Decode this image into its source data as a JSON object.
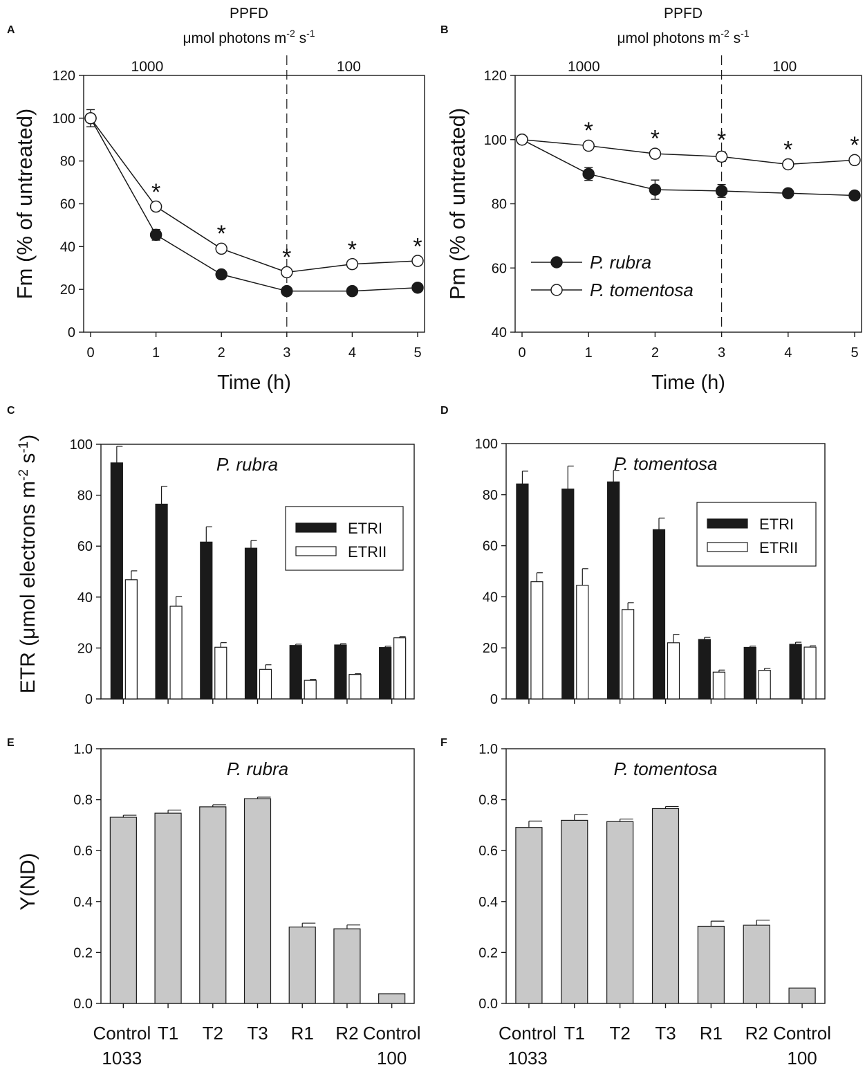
{
  "colors": {
    "line": "#1a1a1a",
    "bar_dark": "#1a1a1a",
    "bar_white": "#ffffff",
    "bar_gray": "#c8c8c8"
  },
  "shared_text": {
    "ppfd_title": "PPFD",
    "ppfd_units": "μmol photons m⁻² s⁻¹",
    "ppfd_high": "1000",
    "ppfd_low": "100",
    "etr_ylabel": "ETR (μmol electrons m⁻² s⁻¹)"
  },
  "chart_data": [
    {
      "panel": "A",
      "type": "line",
      "ylabel": "Fm (% of untreated)",
      "xlabel": "Time (h)",
      "x": [
        0,
        1,
        2,
        3,
        4,
        5
      ],
      "xlim": [
        -0.1,
        5.1
      ],
      "ylim": [
        0,
        120
      ],
      "xticks": [
        "0",
        "1",
        "2",
        "3",
        "4",
        "5"
      ],
      "yticks": [
        "0",
        "20",
        "40",
        "60",
        "80",
        "100",
        "120"
      ],
      "divider_at": 3,
      "series": [
        {
          "name": "P. rubra",
          "marker": "filled",
          "values": [
            100,
            45.5,
            27,
            19.2,
            19.2,
            20.8
          ],
          "errors": [
            0,
            2.5,
            1.2,
            1.2,
            1.2,
            1.2
          ]
        },
        {
          "name": "P. tomentosa",
          "marker": "open",
          "values": [
            100,
            58.7,
            39,
            28,
            31.8,
            33.3
          ],
          "errors": [
            4,
            1.2,
            1.5,
            1.5,
            1.2,
            1.2
          ]
        }
      ],
      "significance_at": [
        1,
        2,
        3,
        4,
        5
      ],
      "significance_mark": "*"
    },
    {
      "panel": "B",
      "type": "line",
      "ylabel": "Pm (% of untreated)",
      "xlabel": "Time (h)",
      "x": [
        0,
        1,
        2,
        3,
        4,
        5
      ],
      "xlim": [
        -0.1,
        5.1
      ],
      "ylim": [
        40,
        120
      ],
      "xticks": [
        "0",
        "1",
        "2",
        "3",
        "4",
        "5"
      ],
      "yticks": [
        "40",
        "60",
        "80",
        "100",
        "120"
      ],
      "divider_at": 3,
      "series": [
        {
          "name": "P. rubra",
          "marker": "filled",
          "values": [
            100,
            89.3,
            84.4,
            84,
            83.3,
            82.6
          ],
          "errors": [
            0,
            2,
            3,
            2,
            0.5,
            0.5
          ]
        },
        {
          "name": "P. tomentosa",
          "marker": "open",
          "values": [
            100,
            98.1,
            95.6,
            94.7,
            92.3,
            93.6
          ],
          "errors": [
            0,
            1,
            1,
            1.5,
            0.8,
            1
          ]
        }
      ],
      "significance_at": [
        1,
        2,
        3,
        4,
        5
      ],
      "significance_mark": "*",
      "legend": {
        "position": "lower-left",
        "entries": [
          "P. rubra",
          "P. tomentosa"
        ]
      }
    },
    {
      "panel": "C",
      "type": "bar",
      "title": "P. rubra",
      "ylim": [
        0,
        100
      ],
      "yticks": [
        "0",
        "20",
        "40",
        "60",
        "80",
        "100"
      ],
      "categories": [
        "Control 1033",
        "T1",
        "T2",
        "T3",
        "R1",
        "R2",
        "Control 100"
      ],
      "series": [
        {
          "name": "ETRI",
          "fill": "dark",
          "values": [
            92.7,
            76.5,
            61.6,
            59.2,
            21,
            21.2,
            20.2
          ],
          "errors": [
            6.5,
            7,
            6,
            3,
            0.5,
            0.5,
            0.5
          ]
        },
        {
          "name": "ETRII",
          "fill": "white",
          "values": [
            46.8,
            36.4,
            20.3,
            11.6,
            7.3,
            9.6,
            24
          ],
          "errors": [
            3.5,
            3.8,
            1.8,
            1.8,
            0.4,
            0.3,
            0.5
          ]
        }
      ],
      "legend": {
        "position": "right",
        "entries": [
          "ETRI",
          "ETRII"
        ]
      }
    },
    {
      "panel": "D",
      "type": "bar",
      "title": "P. tomentosa",
      "ylim": [
        0,
        100
      ],
      "yticks": [
        "0",
        "20",
        "40",
        "60",
        "80",
        "100"
      ],
      "categories": [
        "Control 1033",
        "T1",
        "T2",
        "T3",
        "R1",
        "R2",
        "Control 100"
      ],
      "series": [
        {
          "name": "ETRI",
          "fill": "dark",
          "values": [
            84.2,
            82.2,
            85,
            66.3,
            23.3,
            20.2,
            21.4
          ],
          "errors": [
            5,
            9,
            4.5,
            4.5,
            0.8,
            0.5,
            0.8
          ]
        },
        {
          "name": "ETRII",
          "fill": "white",
          "values": [
            45.9,
            44.5,
            35,
            22,
            10.5,
            11.2,
            20.3
          ],
          "errors": [
            3.5,
            6.5,
            2.7,
            3.3,
            0.8,
            0.8,
            0.5
          ]
        }
      ],
      "legend": {
        "position": "right",
        "entries": [
          "ETRI",
          "ETRII"
        ]
      }
    },
    {
      "panel": "E",
      "type": "bar",
      "title": "P. rubra",
      "ylabel": "Y(ND)",
      "ylim": [
        0,
        1
      ],
      "yticks": [
        "0.0",
        "0.2",
        "0.4",
        "0.6",
        "0.8",
        "1.0"
      ],
      "categories": [
        "Control 1033",
        "T1",
        "T2",
        "T3",
        "R1",
        "R2",
        "Control 100"
      ],
      "category_labels": [
        [
          "Control",
          "1033"
        ],
        [
          "T1"
        ],
        [
          "T2"
        ],
        [
          "T3"
        ],
        [
          "R1"
        ],
        [
          "R2"
        ],
        [
          "Control",
          "100"
        ]
      ],
      "series": [
        {
          "name": "Y(ND)",
          "fill": "gray",
          "values": [
            0.731,
            0.747,
            0.772,
            0.804,
            0.3,
            0.293,
            0.038
          ],
          "errors": [
            0.008,
            0.012,
            0.008,
            0.006,
            0.015,
            0.015,
            0
          ]
        }
      ]
    },
    {
      "panel": "F",
      "type": "bar",
      "title": "P. tomentosa",
      "ylim": [
        0,
        1
      ],
      "yticks": [
        "0.0",
        "0.2",
        "0.4",
        "0.6",
        "0.8",
        "1.0"
      ],
      "categories": [
        "Control 1033",
        "T1",
        "T2",
        "T3",
        "R1",
        "R2",
        "Control 100"
      ],
      "category_labels": [
        [
          "Control",
          "1033"
        ],
        [
          "T1"
        ],
        [
          "T2"
        ],
        [
          "T3"
        ],
        [
          "R1"
        ],
        [
          "R2"
        ],
        [
          "Control",
          "100"
        ]
      ],
      "series": [
        {
          "name": "Y(ND)",
          "fill": "gray",
          "values": [
            0.691,
            0.719,
            0.714,
            0.765,
            0.303,
            0.307,
            0.06
          ],
          "errors": [
            0.025,
            0.022,
            0.01,
            0.008,
            0.02,
            0.02,
            0
          ]
        }
      ]
    }
  ]
}
